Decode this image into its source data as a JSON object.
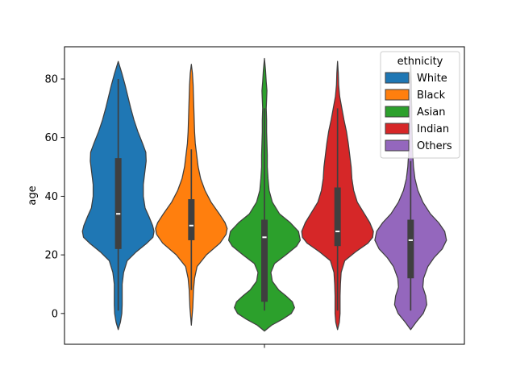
{
  "chart_data": {
    "type": "violin",
    "title": "",
    "xlabel": "",
    "ylabel": "age",
    "ylim": [
      -10.5,
      91
    ],
    "yticks": [
      0,
      20,
      40,
      60,
      80
    ],
    "ytick_labels": [
      "0",
      "20",
      "40",
      "60",
      "80"
    ],
    "grid": false,
    "legend": {
      "title": "ethnicity",
      "placement": "top-right",
      "entries": [
        "White",
        "Black",
        "Asian",
        "Indian",
        "Others"
      ]
    },
    "series": [
      {
        "name": "White",
        "color": "#1f77b4",
        "range": [
          -5.5,
          86
        ],
        "q1": 22,
        "median": 34,
        "q3": 53,
        "whisker": [
          1,
          80
        ],
        "profile": [
          [
            -5.5,
            0
          ],
          [
            -3,
            0.06
          ],
          [
            0,
            0.1
          ],
          [
            3,
            0.11
          ],
          [
            6,
            0.11
          ],
          [
            10,
            0.11
          ],
          [
            14,
            0.15
          ],
          [
            18,
            0.25
          ],
          [
            21,
            0.5
          ],
          [
            24,
            0.8
          ],
          [
            26,
            0.97
          ],
          [
            28,
            1.0
          ],
          [
            30,
            0.96
          ],
          [
            33,
            0.86
          ],
          [
            36,
            0.75
          ],
          [
            40,
            0.7
          ],
          [
            44,
            0.7
          ],
          [
            48,
            0.74
          ],
          [
            52,
            0.78
          ],
          [
            55,
            0.77
          ],
          [
            58,
            0.68
          ],
          [
            62,
            0.55
          ],
          [
            66,
            0.44
          ],
          [
            70,
            0.35
          ],
          [
            74,
            0.27
          ],
          [
            78,
            0.19
          ],
          [
            82,
            0.1
          ],
          [
            84,
            0.05
          ],
          [
            86,
            0
          ]
        ]
      },
      {
        "name": "Black",
        "color": "#ff7f0e",
        "range": [
          -4,
          85
        ],
        "q1": 25,
        "median": 30,
        "q3": 39,
        "whisker": [
          8,
          56
        ],
        "profile": [
          [
            -4,
            0
          ],
          [
            -1,
            0.02
          ],
          [
            2,
            0.04
          ],
          [
            5,
            0.05
          ],
          [
            8,
            0.06
          ],
          [
            12,
            0.09
          ],
          [
            16,
            0.16
          ],
          [
            20,
            0.42
          ],
          [
            24,
            0.8
          ],
          [
            27,
            0.97
          ],
          [
            29,
            1.0
          ],
          [
            31,
            0.94
          ],
          [
            34,
            0.78
          ],
          [
            38,
            0.55
          ],
          [
            42,
            0.38
          ],
          [
            46,
            0.26
          ],
          [
            50,
            0.19
          ],
          [
            54,
            0.15
          ],
          [
            58,
            0.11
          ],
          [
            62,
            0.09
          ],
          [
            66,
            0.08
          ],
          [
            70,
            0.07
          ],
          [
            74,
            0.06
          ],
          [
            78,
            0.05
          ],
          [
            82,
            0.03
          ],
          [
            85,
            0
          ]
        ]
      },
      {
        "name": "Asian",
        "color": "#2ca02c",
        "range": [
          -6,
          87
        ],
        "q1": 4,
        "median": 26,
        "q3": 32,
        "whisker": [
          1,
          70
        ],
        "profile": [
          [
            -6,
            0
          ],
          [
            -4,
            0.2
          ],
          [
            -2,
            0.5
          ],
          [
            0,
            0.75
          ],
          [
            2,
            0.84
          ],
          [
            4,
            0.78
          ],
          [
            6,
            0.6
          ],
          [
            8,
            0.4
          ],
          [
            11,
            0.22
          ],
          [
            14,
            0.18
          ],
          [
            17,
            0.28
          ],
          [
            20,
            0.6
          ],
          [
            23,
            0.9
          ],
          [
            25,
            1.0
          ],
          [
            28,
            0.95
          ],
          [
            31,
            0.72
          ],
          [
            34,
            0.42
          ],
          [
            38,
            0.22
          ],
          [
            42,
            0.13
          ],
          [
            46,
            0.1
          ],
          [
            50,
            0.08
          ],
          [
            54,
            0.08
          ],
          [
            58,
            0.07
          ],
          [
            62,
            0.06
          ],
          [
            66,
            0.06
          ],
          [
            70,
            0.05
          ],
          [
            73,
            0.06
          ],
          [
            76,
            0.07
          ],
          [
            79,
            0.05
          ],
          [
            83,
            0.03
          ],
          [
            87,
            0
          ]
        ]
      },
      {
        "name": "Indian",
        "color": "#d62728",
        "range": [
          -5.5,
          86
        ],
        "q1": 23,
        "median": 28,
        "q3": 43,
        "whisker": [
          1,
          70
        ],
        "profile": [
          [
            -5.5,
            0
          ],
          [
            -3,
            0.05
          ],
          [
            0,
            0.07
          ],
          [
            3,
            0.07
          ],
          [
            6,
            0.07
          ],
          [
            10,
            0.08
          ],
          [
            14,
            0.1
          ],
          [
            18,
            0.2
          ],
          [
            21,
            0.5
          ],
          [
            24,
            0.85
          ],
          [
            26,
            0.98
          ],
          [
            28,
            1.0
          ],
          [
            31,
            0.9
          ],
          [
            34,
            0.75
          ],
          [
            38,
            0.55
          ],
          [
            42,
            0.45
          ],
          [
            46,
            0.4
          ],
          [
            50,
            0.38
          ],
          [
            54,
            0.34
          ],
          [
            58,
            0.3
          ],
          [
            62,
            0.25
          ],
          [
            66,
            0.18
          ],
          [
            70,
            0.12
          ],
          [
            74,
            0.06
          ],
          [
            78,
            0.03
          ],
          [
            82,
            0.02
          ],
          [
            86,
            0
          ]
        ]
      },
      {
        "name": "Others",
        "color": "#9467bd",
        "range": [
          -5.5,
          86
        ],
        "q1": 12,
        "median": 25,
        "q3": 32,
        "whisker": [
          1,
          52
        ],
        "profile": [
          [
            -5.5,
            0
          ],
          [
            -3,
            0.15
          ],
          [
            0,
            0.35
          ],
          [
            3,
            0.45
          ],
          [
            6,
            0.42
          ],
          [
            9,
            0.34
          ],
          [
            12,
            0.36
          ],
          [
            16,
            0.48
          ],
          [
            19,
            0.65
          ],
          [
            22,
            0.88
          ],
          [
            25,
            1.0
          ],
          [
            28,
            0.95
          ],
          [
            31,
            0.78
          ],
          [
            34,
            0.55
          ],
          [
            38,
            0.34
          ],
          [
            42,
            0.2
          ],
          [
            46,
            0.12
          ],
          [
            50,
            0.08
          ],
          [
            54,
            0.06
          ],
          [
            58,
            0.05
          ],
          [
            62,
            0.04
          ],
          [
            66,
            0.03
          ],
          [
            70,
            0.03
          ],
          [
            74,
            0.02
          ],
          [
            78,
            0.02
          ],
          [
            82,
            0.01
          ],
          [
            86,
            0
          ]
        ]
      }
    ]
  }
}
